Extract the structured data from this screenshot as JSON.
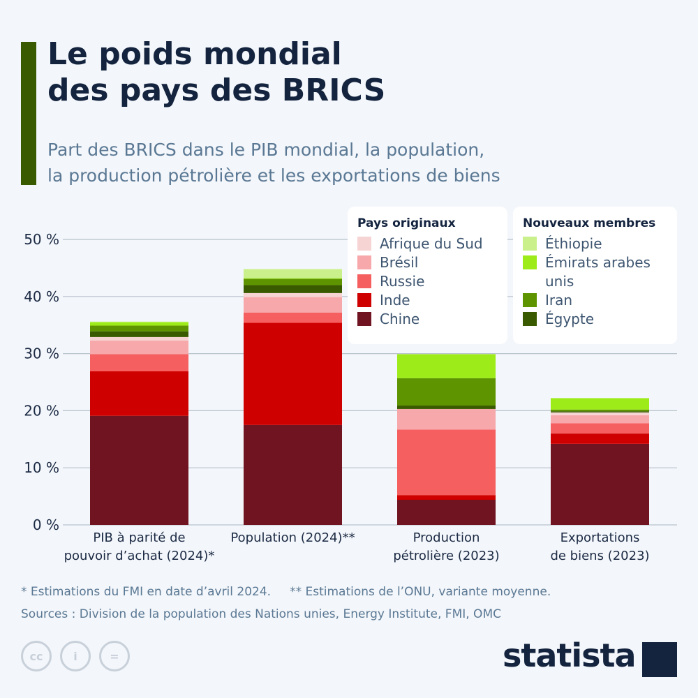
{
  "header": {
    "title": "Le poids mondial\ndes pays des BRICS",
    "subtitle": "Part des BRICS dans le PIB mondial, la population,\nla production pétrolière et les exportations de biens",
    "accent_color": "#3a5a00"
  },
  "chart_data": {
    "type": "bar",
    "stacked": true,
    "categories": [
      "PIB à parité de\npouvoir d’achat (2024)*",
      "Population (2024)**",
      "Production\npétrolière (2023)",
      "Exportations\nde biens (2023)"
    ],
    "ylim": [
      0,
      50
    ],
    "yticks": [
      "0 %",
      "10 %",
      "20 %",
      "30 %",
      "40 %",
      "50 %"
    ],
    "grid": true,
    "legend_position": "top-right",
    "legend_groups": [
      {
        "title": "Pays originaux",
        "items": [
          "Afrique du Sud",
          "Brésil",
          "Russie",
          "Inde",
          "Chine"
        ]
      },
      {
        "title": "Nouveaux membres",
        "items": [
          "Éthiopie",
          "Émirats arabes unis",
          "Iran",
          "Égypte"
        ]
      }
    ],
    "series": [
      {
        "name": "Chine",
        "color": "#6f1420",
        "values": [
          19.1,
          17.5,
          4.4,
          14.2
        ]
      },
      {
        "name": "Inde",
        "color": "#cf0000",
        "values": [
          7.8,
          17.9,
          0.8,
          1.8
        ]
      },
      {
        "name": "Russie",
        "color": "#f55f5f",
        "values": [
          3.0,
          1.8,
          11.5,
          1.8
        ]
      },
      {
        "name": "Brésil",
        "color": "#f7a8ab",
        "values": [
          2.4,
          2.7,
          3.6,
          1.4
        ]
      },
      {
        "name": "Afrique du Sud",
        "color": "#f7d4d4",
        "values": [
          0.6,
          0.7,
          0.0,
          0.5
        ]
      },
      {
        "name": "Égypte",
        "color": "#3a5a00",
        "values": [
          1.0,
          1.4,
          0.6,
          0.2
        ]
      },
      {
        "name": "Iran",
        "color": "#5e9400",
        "values": [
          1.0,
          1.1,
          4.8,
          0.3
        ]
      },
      {
        "name": "Émirats arabes unis",
        "color": "#9eeb1a",
        "values": [
          0.6,
          0.1,
          4.2,
          2.0
        ]
      },
      {
        "name": "Éthiopie",
        "color": "#c9f08a",
        "values": [
          0.1,
          1.6,
          0.0,
          0.0
        ]
      }
    ]
  },
  "footer": {
    "note": "* Estimations du FMI en date d’avril 2024.     ** Estimations de l’ONU, variante moyenne.",
    "sources": "Sources : Division de la population des Nations unies, Energy Institute, FMI, OMC",
    "license_icons": [
      "cc-icon",
      "attribution-icon",
      "no-derivatives-icon"
    ],
    "brand": "statista"
  }
}
